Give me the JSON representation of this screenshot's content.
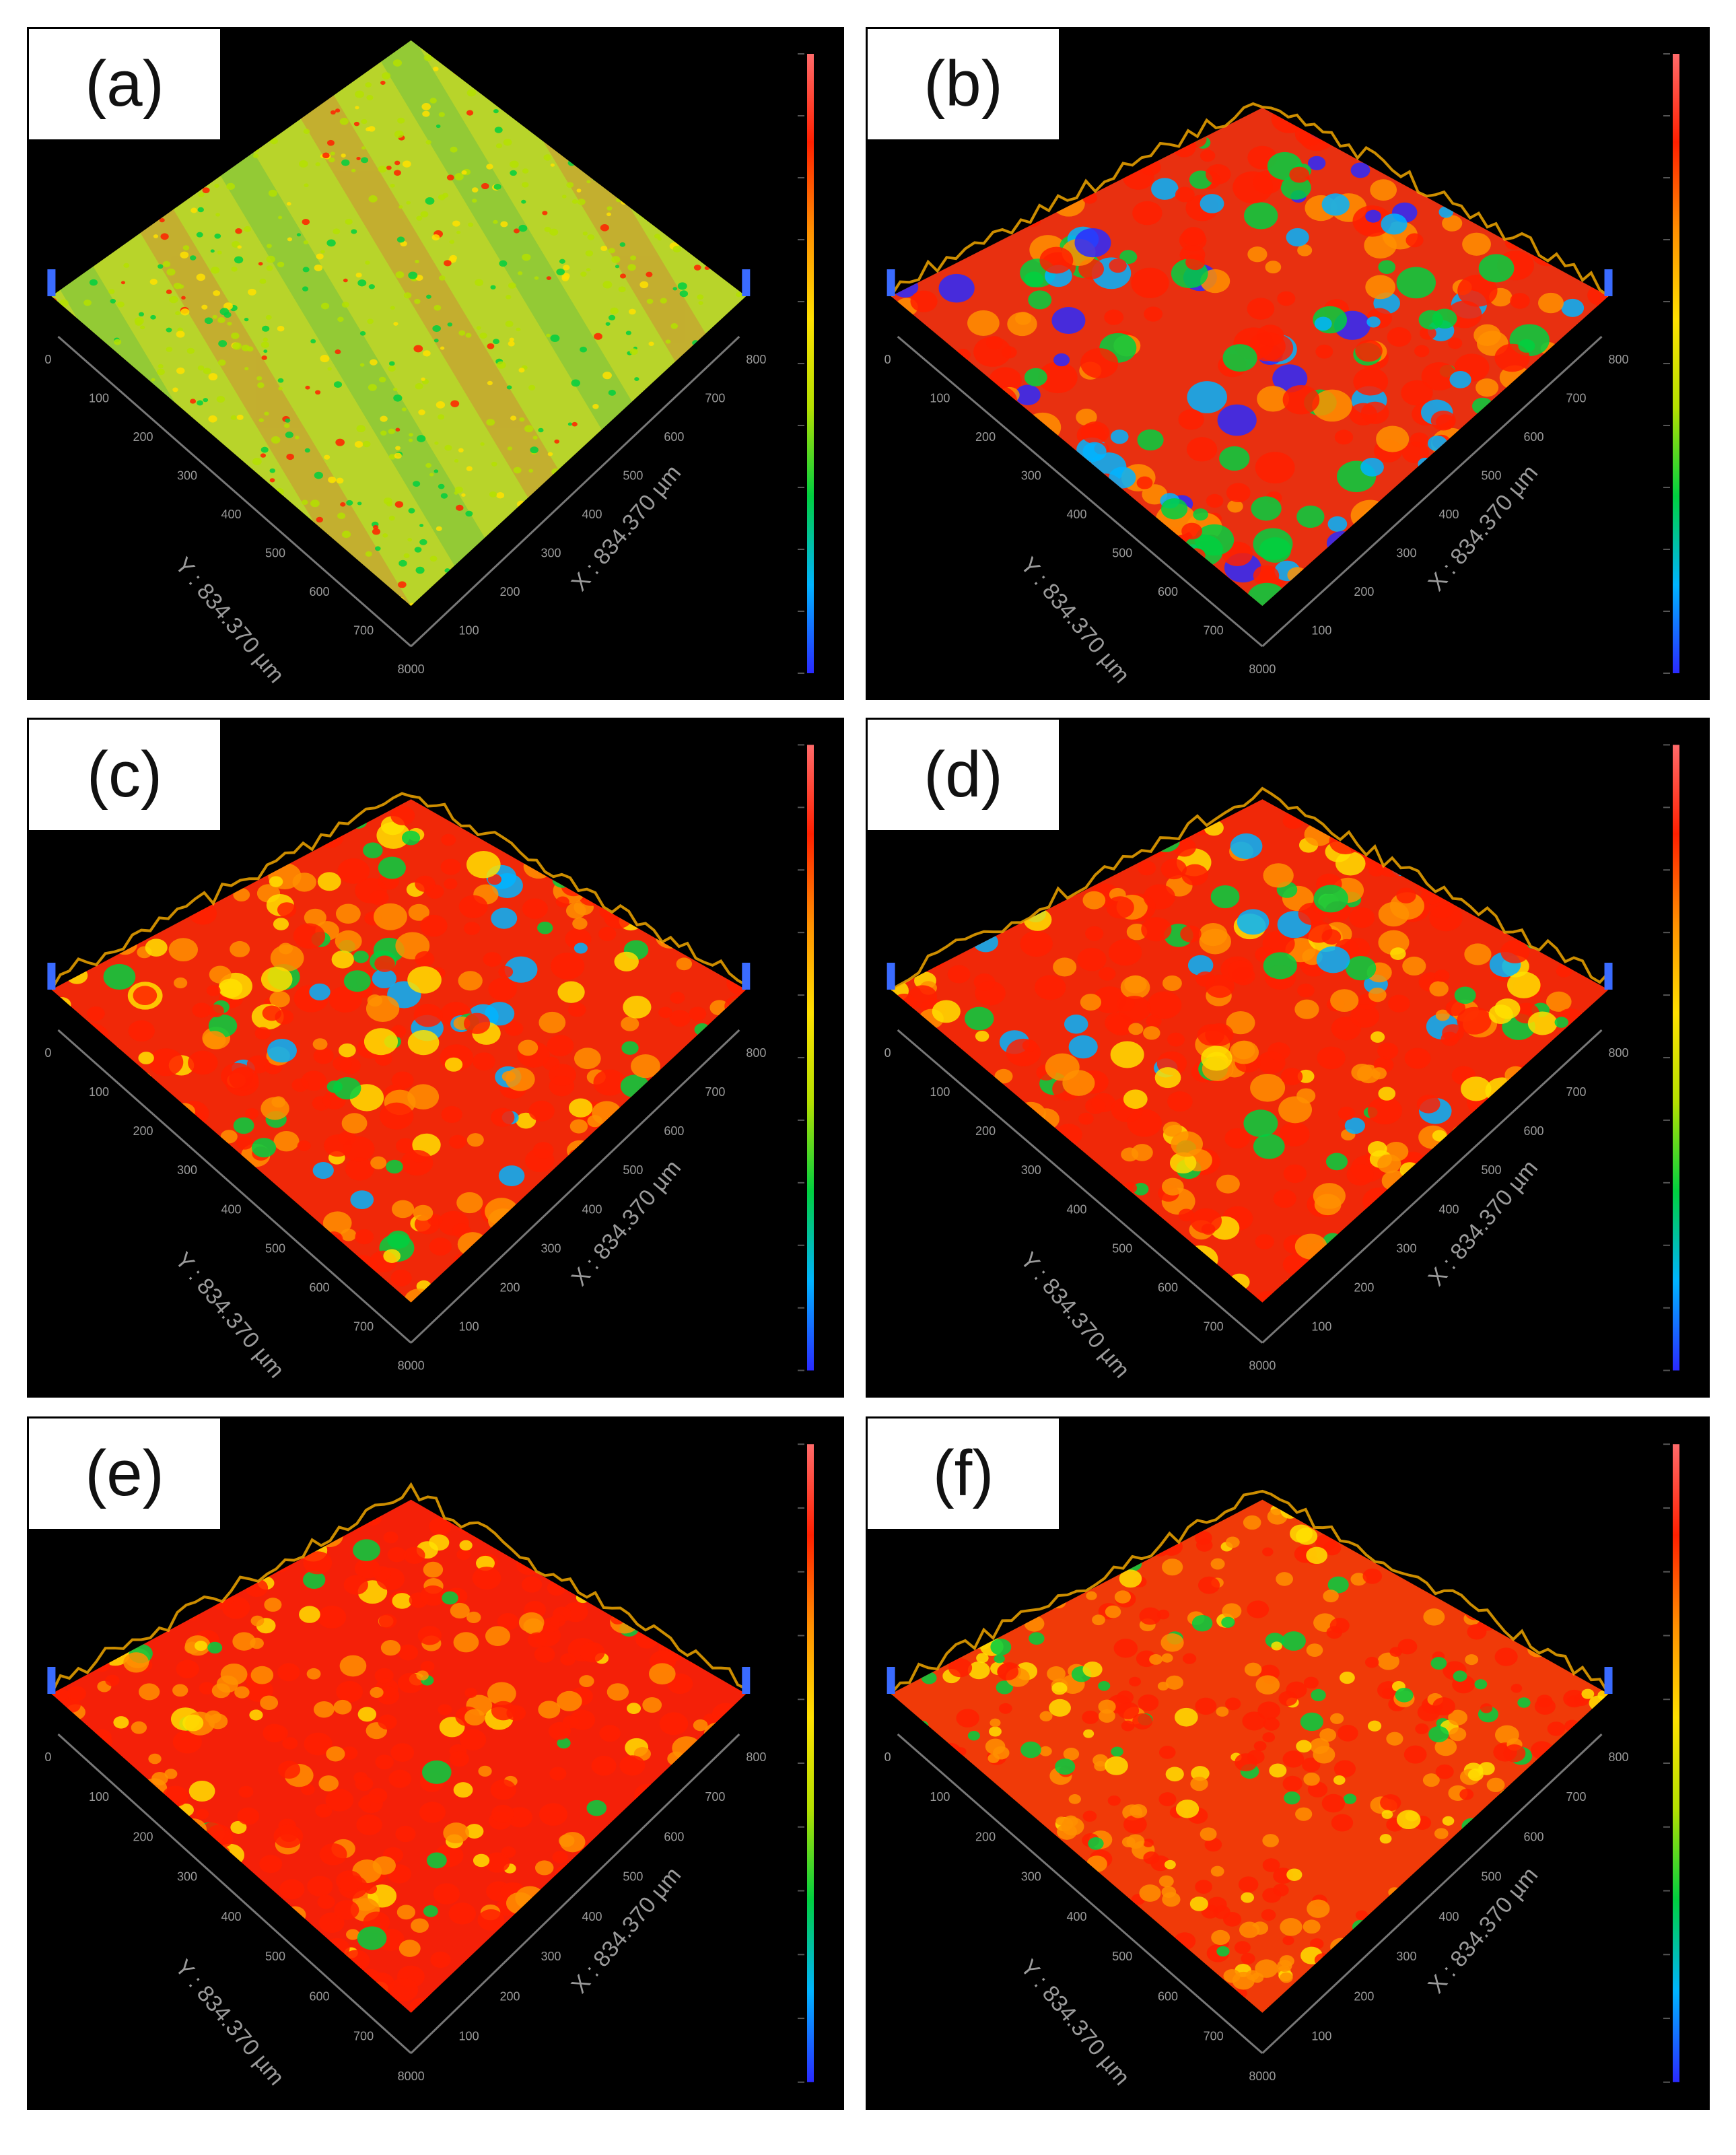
{
  "figure": {
    "panels": [
      {
        "label": "(a)",
        "style": "flat",
        "y_axis_label": "Y : 834.370 µm",
        "x_axis_label": "X : 834.370 µm"
      },
      {
        "label": "(b)",
        "style": "rough",
        "y_axis_label": "Y : 834.370 µm",
        "x_axis_label": "X : 834.370 µm"
      },
      {
        "label": "(c)",
        "style": "nodular",
        "y_axis_label": "Y : 834.370 µm",
        "x_axis_label": "X : 834.370 µm"
      },
      {
        "label": "(d)",
        "style": "nodular",
        "y_axis_label": "Y : 834.370 µm",
        "x_axis_label": "X : 834.370 µm"
      },
      {
        "label": "(e)",
        "style": "dense",
        "y_axis_label": "Y : 834.370 µm",
        "x_axis_label": "X : 834.370 µm"
      },
      {
        "label": "(f)",
        "style": "fine",
        "y_axis_label": "Y : 834.370 µm",
        "x_axis_label": "X : 834.370 µm"
      }
    ],
    "axis_ticks": [
      "0",
      "100",
      "200",
      "300",
      "400",
      "500",
      "600",
      "700",
      "800"
    ],
    "colormap": [
      "#2a2aff",
      "#00b4ff",
      "#00d040",
      "#b4e000",
      "#ffe000",
      "#ff9000",
      "#ff2000",
      "#ff6a6a"
    ]
  }
}
